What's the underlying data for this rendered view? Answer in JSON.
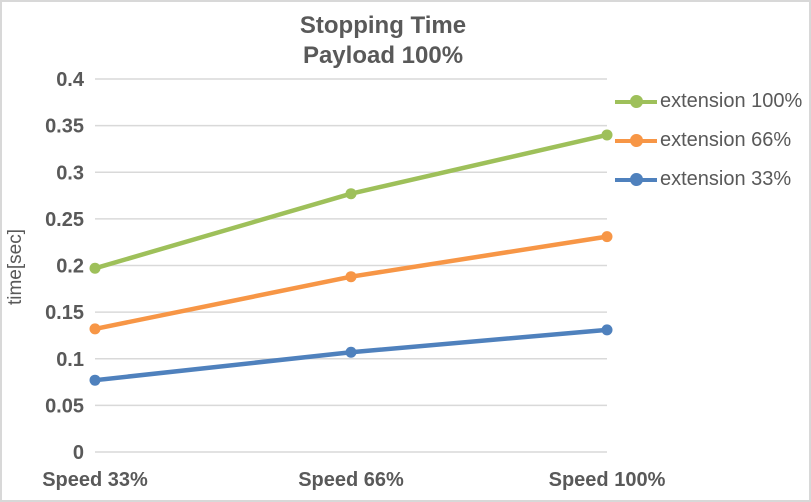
{
  "chart_data": {
    "type": "line",
    "title": "Stopping Time",
    "subtitle": "Payload 100%",
    "categories": [
      "Speed 33%",
      "Speed 66%",
      "Speed 100%"
    ],
    "series": [
      {
        "name": "extension 100%",
        "color": "#9EC05A",
        "values": [
          0.197,
          0.277,
          0.34
        ]
      },
      {
        "name": "extension 66%",
        "color": "#F79646",
        "values": [
          0.132,
          0.188,
          0.231
        ]
      },
      {
        "name": "extension 33%",
        "color": "#4F81BD",
        "values": [
          0.077,
          0.107,
          0.131
        ]
      }
    ],
    "xlabel": "",
    "ylabel": "time[sec]",
    "ylim": [
      0,
      0.4
    ],
    "ytick_labels": [
      "0",
      "0.05",
      "0.1",
      "0.15",
      "0.2",
      "0.25",
      "0.3",
      "0.35",
      "0.4"
    ],
    "grid": true,
    "legend_position": "right",
    "colors": {
      "grid": "#D9D9D9",
      "text": "#595959",
      "border": "#D8D8D8",
      "background": "#FFFFFF"
    }
  }
}
